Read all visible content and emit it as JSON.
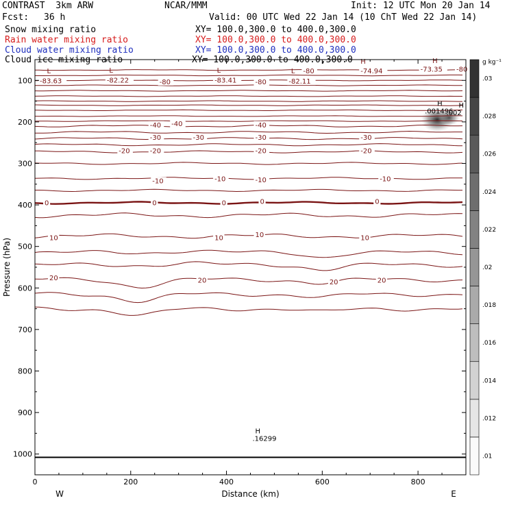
{
  "header": {
    "model": "CONTRAST  3km ARW",
    "org": "NCAR/MMM",
    "init": "Init: 12 UTC Mon 20 Jan 14",
    "fcst_label": "Fcst:",
    "fcst_value": "36 h",
    "valid": "Valid: 00 UTC Wed 22 Jan 14 (10 ChT Wed 22 Jan 14)"
  },
  "legend": [
    {
      "name": "Snow mixing ratio",
      "xy": "XY= 100.0,300.0 to 400.0,300.0",
      "color": "#000000"
    },
    {
      "name": "Rain water mixing ratio",
      "xy": "XY= 100.0,300.0 to 400.0,300.0",
      "color": "#d61b1b"
    },
    {
      "name": "Cloud water mixing ratio",
      "xy": "XY= 100.0,300.0 to 400.0,300.0",
      "color": "#1f2fbd"
    },
    {
      "name": "Cloud ice mixing ratio",
      "xy": "XY= 100.0,300.0 to 400.0,300.0",
      "color": "#000000"
    }
  ],
  "chart_data": {
    "type": "contour cross-section",
    "xlabel": "Distance (km)",
    "ylabel": "Pressure (hPa)",
    "xlim": [
      0,
      900
    ],
    "ylim": [
      1050,
      50
    ],
    "x_ticks": [
      0,
      200,
      400,
      600,
      800
    ],
    "y_ticks": [
      100,
      200,
      300,
      400,
      500,
      600,
      700,
      800,
      900,
      1000
    ],
    "west_label": "W",
    "east_label": "E",
    "colorbar": {
      "unit": "g kg⁻¹",
      "levels": [
        ".01",
        ".012",
        ".014",
        ".016",
        ".018",
        ".02",
        ".022",
        ".024",
        ".026",
        ".028",
        ".03"
      ]
    },
    "temperature_contours": [
      {
        "p": 112,
        "label": "-80"
      },
      {
        "p": 210,
        "label": "-40"
      },
      {
        "p": 240,
        "label": "-30"
      },
      {
        "p": 272,
        "label": "-20"
      },
      {
        "p": 336,
        "label": "-10"
      },
      {
        "p": 395,
        "label": "0",
        "bold": true
      },
      {
        "p": 475,
        "label": "10"
      },
      {
        "p": 580,
        "label": "20"
      }
    ],
    "annotations": [
      {
        "kind": "L",
        "value": "-83.63",
        "x": 25,
        "p": 103
      },
      {
        "kind": "L",
        "value": "-82.22",
        "x": 155,
        "p": 101
      },
      {
        "kind": "L",
        "value": "-83.41",
        "x": 380,
        "p": 101
      },
      {
        "kind": "L",
        "value": "-82.11",
        "x": 535,
        "p": 103
      },
      {
        "kind": "H",
        "value": "-74.94",
        "x": 680,
        "p": 80
      },
      {
        "kind": "H",
        "value": "-73.35",
        "x": 830,
        "p": 78
      },
      {
        "kind": "H",
        "value": ".001496",
        "x": 840,
        "p": 178
      },
      {
        "kind": "H",
        "value": ".002",
        "x": 885,
        "p": 182
      },
      {
        "kind": "H",
        "value": ".16299",
        "x": 460,
        "p": 950
      }
    ],
    "contour_labels": [
      {
        "text": "-80",
        "x": 560,
        "p": 83
      },
      {
        "text": "-74.94",
        "x": 680,
        "p": 83
      },
      {
        "text": "-73.35",
        "x": 805,
        "p": 79
      },
      {
        "text": "-80",
        "x": 880,
        "p": 79
      },
      {
        "text": "-83.63",
        "x": 10,
        "p": 107
      },
      {
        "text": "-82.22",
        "x": 150,
        "p": 105
      },
      {
        "text": "-80",
        "x": 260,
        "p": 109
      },
      {
        "text": "-83.41",
        "x": 375,
        "p": 105
      },
      {
        "text": "-80",
        "x": 460,
        "p": 109
      },
      {
        "text": "-82.11",
        "x": 530,
        "p": 108
      },
      {
        "text": "-40",
        "x": 240,
        "p": 213
      },
      {
        "text": "-40",
        "x": 285,
        "p": 210
      },
      {
        "text": "-40",
        "x": 460,
        "p": 213
      },
      {
        "text": "-30",
        "x": 240,
        "p": 243
      },
      {
        "text": "-30",
        "x": 330,
        "p": 243
      },
      {
        "text": "-30",
        "x": 460,
        "p": 243
      },
      {
        "text": "-30",
        "x": 680,
        "p": 243
      },
      {
        "text": "-20",
        "x": 175,
        "p": 275
      },
      {
        "text": "-20",
        "x": 240,
        "p": 275
      },
      {
        "text": "-20",
        "x": 460,
        "p": 275
      },
      {
        "text": "-20",
        "x": 680,
        "p": 275
      },
      {
        "text": "-10",
        "x": 245,
        "p": 348
      },
      {
        "text": "-10",
        "x": 375,
        "p": 343
      },
      {
        "text": "-10",
        "x": 460,
        "p": 345
      },
      {
        "text": "-10",
        "x": 720,
        "p": 343
      },
      {
        "text": "0",
        "x": 20,
        "p": 401
      },
      {
        "text": "0",
        "x": 245,
        "p": 401
      },
      {
        "text": "0",
        "x": 390,
        "p": 401
      },
      {
        "text": "0",
        "x": 470,
        "p": 397
      },
      {
        "text": "0",
        "x": 710,
        "p": 397
      },
      {
        "text": "10",
        "x": 30,
        "p": 485
      },
      {
        "text": "10",
        "x": 375,
        "p": 485
      },
      {
        "text": "10",
        "x": 460,
        "p": 477
      },
      {
        "text": "10",
        "x": 680,
        "p": 485
      },
      {
        "text": "20",
        "x": 30,
        "p": 581
      },
      {
        "text": "20",
        "x": 340,
        "p": 587
      },
      {
        "text": "20",
        "x": 615,
        "p": 591
      },
      {
        "text": "20",
        "x": 715,
        "p": 587
      }
    ]
  }
}
